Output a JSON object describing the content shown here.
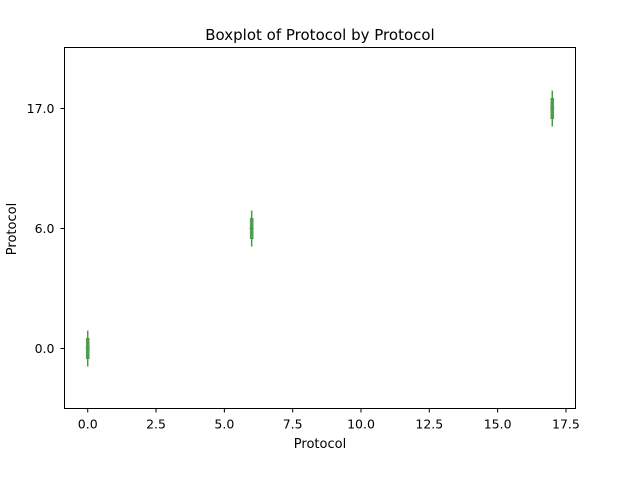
{
  "chart_data": {
    "type": "boxplot",
    "title": "Boxplot of Protocol by Protocol",
    "xlabel": "Protocol",
    "ylabel": "Protocol",
    "x_ticks": [
      "0.0",
      "2.5",
      "5.0",
      "7.5",
      "10.0",
      "12.5",
      "15.0",
      "17.5"
    ],
    "x_tick_values": [
      0,
      2.5,
      5,
      7.5,
      10,
      12.5,
      15,
      17.5
    ],
    "y_ticks": [
      "0.0",
      "6.0",
      "17.0"
    ],
    "y_tick_values": [
      0,
      6,
      17
    ],
    "xlim": [
      -0.85,
      17.85
    ],
    "grid": false,
    "box_color": "#4a9a4a",
    "boxes": [
      {
        "x": 0,
        "y": 0,
        "whisker_low": 0,
        "whisker_high": 0
      },
      {
        "x": 6,
        "y": 6,
        "whisker_low": 6,
        "whisker_high": 6
      },
      {
        "x": 17,
        "y": 17,
        "whisker_low": 17,
        "whisker_high": 17
      }
    ]
  }
}
